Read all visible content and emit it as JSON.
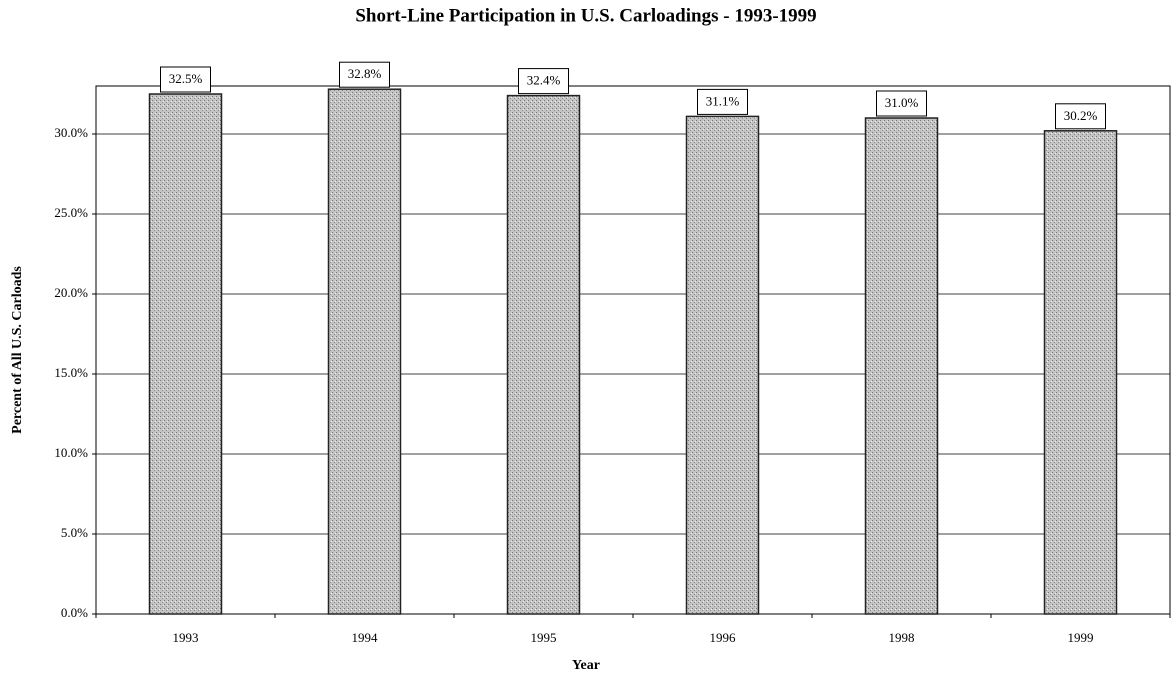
{
  "chart_data": {
    "type": "bar",
    "title": "Short-Line Participation in U.S. Carloadings - 1993-1999",
    "x_label": "Year",
    "y_label": "Percent of All U.S. Carloads",
    "categories": [
      "1993",
      "1994",
      "1995",
      "1996",
      "1998",
      "1999"
    ],
    "values": [
      32.5,
      32.8,
      32.4,
      31.1,
      31.0,
      30.2
    ],
    "value_labels": [
      "32.5%",
      "32.8%",
      "32.4%",
      "31.1%",
      "31.0%",
      "30.2%"
    ],
    "color": "#b4b4b4",
    "ylim": [
      0,
      33
    ],
    "yticks": [
      {
        "value": 0,
        "label": "0.0%"
      },
      {
        "value": 5,
        "label": "5.0%"
      },
      {
        "value": 10,
        "label": "10.0%"
      },
      {
        "value": 15,
        "label": "15.0%"
      },
      {
        "value": 20,
        "label": "20.0%"
      },
      {
        "value": 25,
        "label": "25.0%"
      },
      {
        "value": 30,
        "label": "30.0%"
      }
    ],
    "grid": true
  }
}
